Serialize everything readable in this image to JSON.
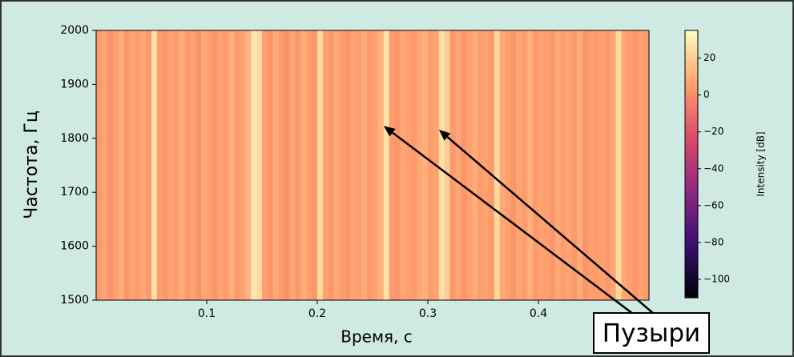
{
  "chart_data": {
    "type": "spectrogram",
    "xlabel": "Время, с",
    "ylabel": "Частота, Гц",
    "colorbar_label": "Intensity [dB]",
    "xlim": [
      0,
      0.5
    ],
    "xticks": [
      0.1,
      0.2,
      0.3,
      0.4
    ],
    "ylim": [
      1500,
      2000
    ],
    "yticks": [
      1500,
      1600,
      1700,
      1800,
      1900,
      2000
    ],
    "clim": [
      -110,
      35
    ],
    "cticks": [
      {
        "value": -100,
        "label": "−100"
      },
      {
        "value": -80,
        "label": "−80"
      },
      {
        "value": -60,
        "label": "−60"
      },
      {
        "value": -40,
        "label": "−40"
      },
      {
        "value": -20,
        "label": "−20"
      },
      0,
      20
    ],
    "colormap": [
      "#000004",
      "#3b0f70",
      "#8c2981",
      "#de4968",
      "#fe9f6d",
      "#fcfdbf"
    ],
    "x": [
      0.0025,
      0.0075,
      0.0125,
      0.0175,
      0.0225,
      0.0275,
      0.0325,
      0.0375,
      0.0425,
      0.0475,
      0.0525,
      0.0575,
      0.0625,
      0.0675,
      0.0725,
      0.0775,
      0.0825,
      0.0875,
      0.0925,
      0.0975,
      0.1025,
      0.1075,
      0.1125,
      0.1175,
      0.1225,
      0.1275,
      0.1325,
      0.1375,
      0.1425,
      0.1475,
      0.1525,
      0.1575,
      0.1625,
      0.1675,
      0.1725,
      0.1775,
      0.1825,
      0.1875,
      0.1925,
      0.1975,
      0.2025,
      0.2075,
      0.2125,
      0.2175,
      0.2225,
      0.2275,
      0.2325,
      0.2375,
      0.2425,
      0.2475,
      0.2525,
      0.2575,
      0.2625,
      0.2675,
      0.2725,
      0.2775,
      0.2825,
      0.2875,
      0.2925,
      0.2975,
      0.3025,
      0.3075,
      0.3125,
      0.3175,
      0.3225,
      0.3275,
      0.3325,
      0.3375,
      0.3425,
      0.3475,
      0.3525,
      0.3575,
      0.3625,
      0.3675,
      0.3725,
      0.3775,
      0.3825,
      0.3875,
      0.3925,
      0.3975,
      0.4025,
      0.4075,
      0.4125,
      0.4175,
      0.4225,
      0.4275,
      0.4325,
      0.4375,
      0.4475,
      0.4425,
      0.4525,
      0.4575,
      0.4625,
      0.4675,
      0.4725,
      0.4775,
      0.4825,
      0.4875,
      0.4925,
      0.4975
    ],
    "values": [
      4,
      8,
      2,
      6,
      10,
      3,
      7,
      5,
      9,
      4,
      26,
      6,
      3,
      8,
      5,
      11,
      4,
      7,
      2,
      9,
      6,
      3,
      8,
      5,
      10,
      4,
      7,
      12,
      28,
      24,
      6,
      3,
      9,
      5,
      2,
      8,
      4,
      11,
      6,
      3,
      25,
      7,
      4,
      9,
      5,
      3,
      8,
      6,
      10,
      4,
      7,
      12,
      27,
      5,
      3,
      8,
      6,
      4,
      9,
      11,
      5,
      7,
      26,
      20,
      4,
      8,
      3,
      6,
      10,
      5,
      7,
      4,
      24,
      9,
      6,
      3,
      8,
      5,
      11,
      4,
      7,
      6,
      3,
      9,
      5,
      8,
      4,
      10,
      6,
      3,
      5,
      7,
      4,
      8,
      24,
      9,
      6,
      3,
      7,
      5
    ],
    "annotations": [
      {
        "text": "Пузыри",
        "points": [
          [
            0.26,
            1823
          ],
          [
            0.31,
            1816
          ]
        ]
      }
    ]
  }
}
